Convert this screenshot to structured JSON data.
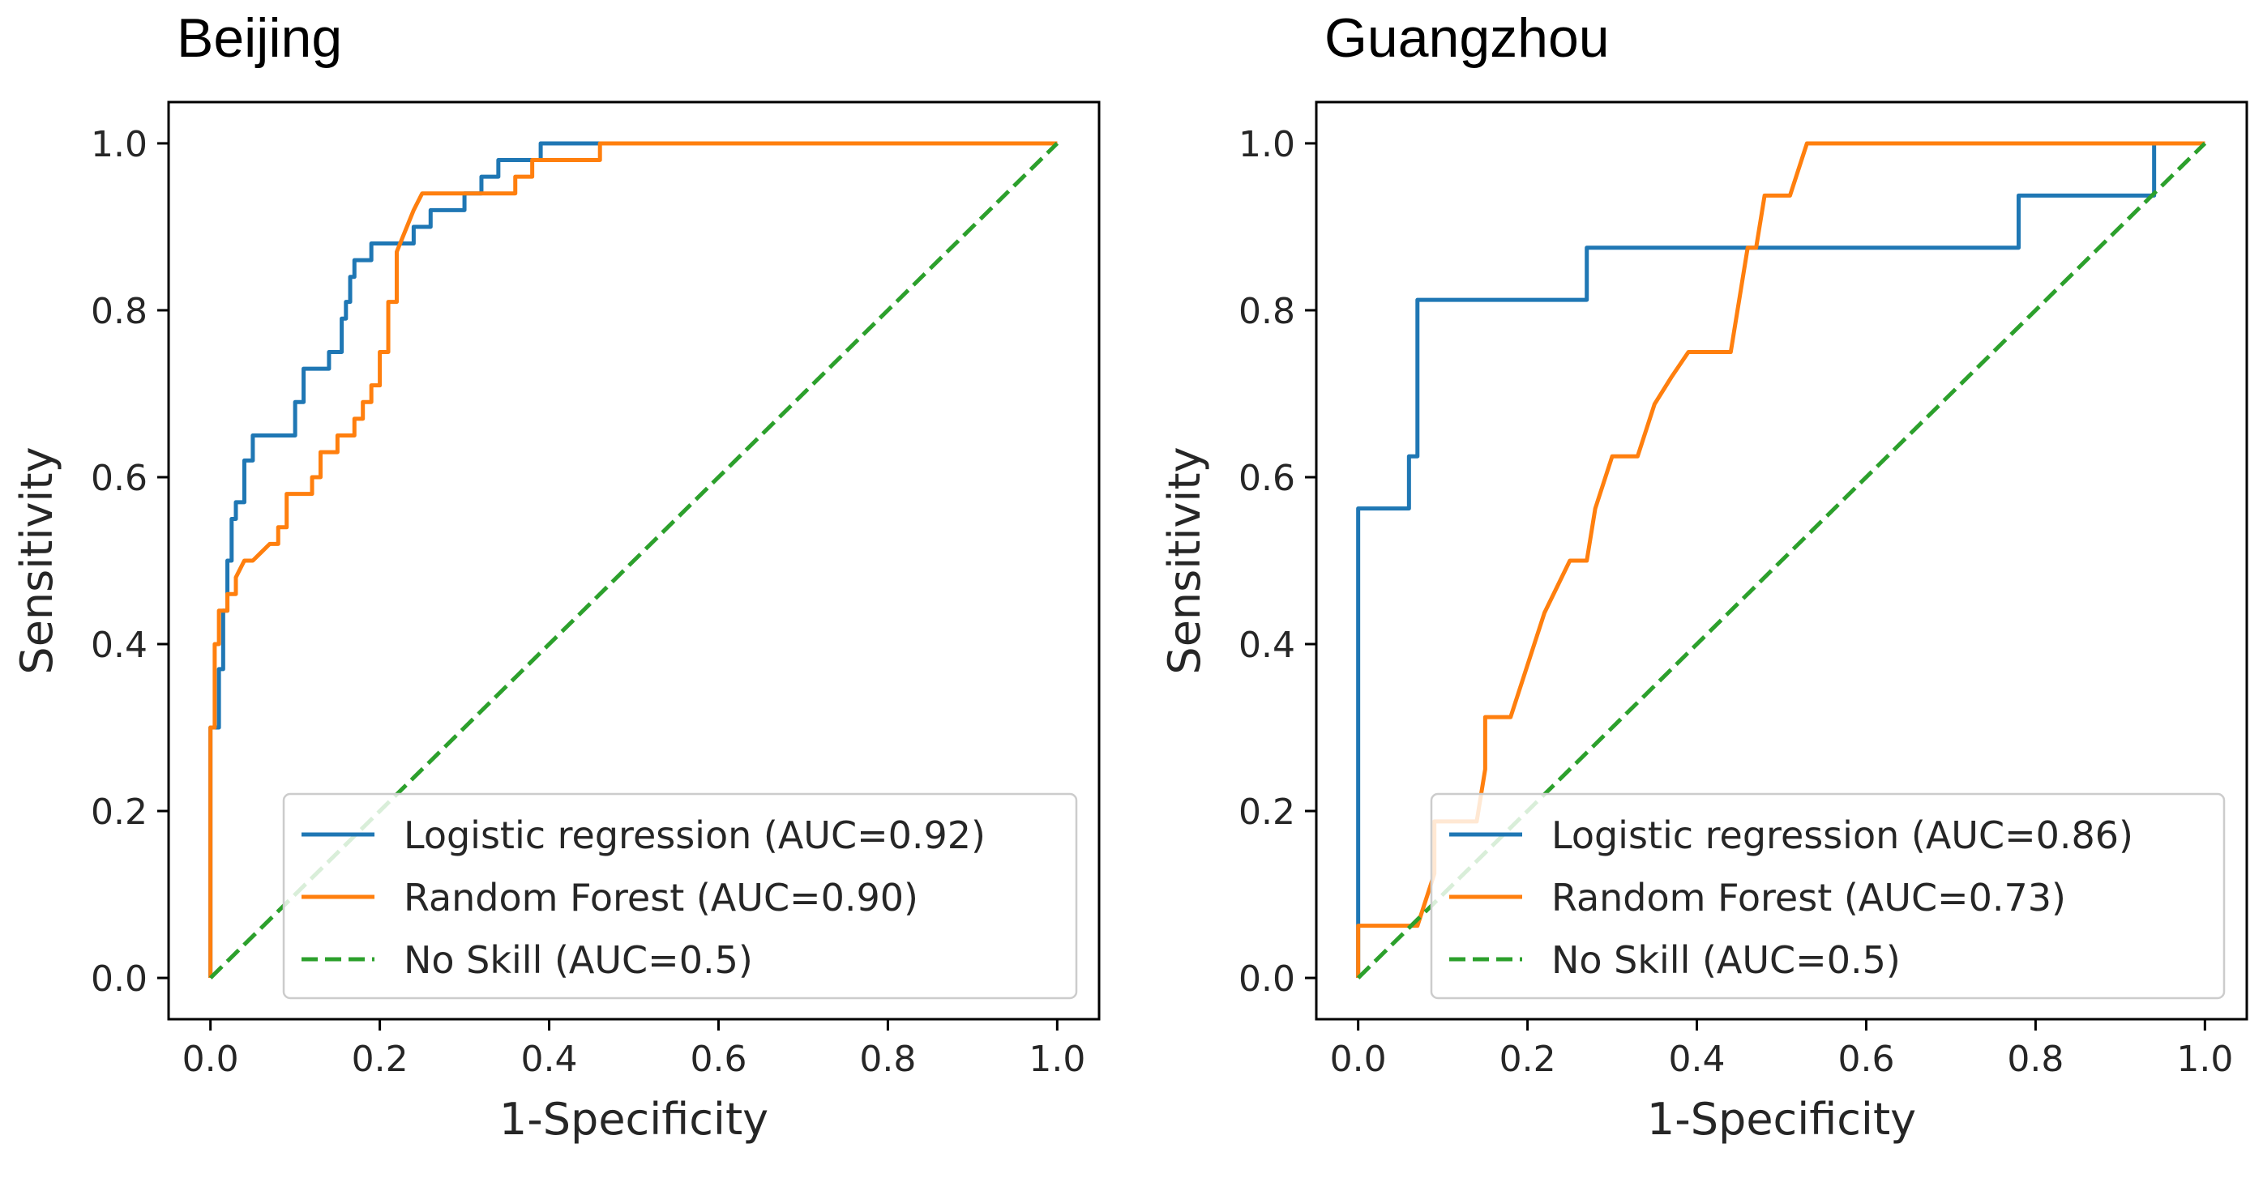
{
  "chart_data": [
    {
      "type": "line",
      "title": "Beijing",
      "xlabel": "1-Specificity",
      "ylabel": "Sensitivity",
      "xlim": [
        0,
        1
      ],
      "ylim": [
        0,
        1
      ],
      "xticks": [
        "0.0",
        "0.2",
        "0.4",
        "0.6",
        "0.8",
        "1.0"
      ],
      "yticks": [
        "0.0",
        "0.2",
        "0.4",
        "0.6",
        "0.8",
        "1.0"
      ],
      "legend_position": "bottom-right",
      "series": [
        {
          "name": "Logistic regression (AUC=0.92)",
          "color": "#1f77b4",
          "style": "solid",
          "x": [
            0,
            0,
            0.01,
            0.01,
            0.015,
            0.015,
            0.02,
            0.02,
            0.025,
            0.025,
            0.03,
            0.03,
            0.04,
            0.04,
            0.05,
            0.05,
            0.06,
            0.06,
            0.1,
            0.1,
            0.11,
            0.11,
            0.14,
            0.14,
            0.155,
            0.155,
            0.16,
            0.16,
            0.165,
            0.165,
            0.17,
            0.17,
            0.19,
            0.19,
            0.23,
            0.23,
            0.24,
            0.24,
            0.26,
            0.26,
            0.3,
            0.3,
            0.32,
            0.32,
            0.34,
            0.34,
            0.39,
            0.39,
            0.47,
            1
          ],
          "y": [
            0,
            0.3,
            0.3,
            0.37,
            0.37,
            0.44,
            0.44,
            0.5,
            0.5,
            0.55,
            0.55,
            0.57,
            0.57,
            0.62,
            0.62,
            0.65,
            0.65,
            0.65,
            0.65,
            0.69,
            0.69,
            0.73,
            0.73,
            0.75,
            0.75,
            0.79,
            0.79,
            0.81,
            0.81,
            0.84,
            0.84,
            0.86,
            0.86,
            0.88,
            0.88,
            0.88,
            0.88,
            0.9,
            0.9,
            0.92,
            0.92,
            0.94,
            0.94,
            0.96,
            0.96,
            0.98,
            0.98,
            1.0,
            1.0,
            1.0
          ]
        },
        {
          "name": "Random Forest (AUC=0.90)",
          "color": "#ff7f0e",
          "style": "solid",
          "x": [
            0,
            0,
            0.005,
            0.005,
            0.01,
            0.01,
            0.02,
            0.02,
            0.03,
            0.03,
            0.04,
            0.05,
            0.06,
            0.07,
            0.08,
            0.08,
            0.09,
            0.09,
            0.12,
            0.12,
            0.13,
            0.13,
            0.15,
            0.15,
            0.17,
            0.17,
            0.18,
            0.18,
            0.19,
            0.19,
            0.2,
            0.2,
            0.21,
            0.21,
            0.22,
            0.22,
            0.24,
            0.25,
            0.32,
            0.32,
            0.36,
            0.36,
            0.38,
            0.38,
            0.46,
            0.46,
            1
          ],
          "y": [
            0,
            0.3,
            0.3,
            0.4,
            0.4,
            0.44,
            0.44,
            0.46,
            0.46,
            0.48,
            0.5,
            0.5,
            0.51,
            0.52,
            0.52,
            0.54,
            0.54,
            0.58,
            0.58,
            0.6,
            0.6,
            0.63,
            0.63,
            0.65,
            0.65,
            0.67,
            0.67,
            0.69,
            0.69,
            0.71,
            0.71,
            0.75,
            0.75,
            0.81,
            0.81,
            0.87,
            0.92,
            0.94,
            0.94,
            0.94,
            0.94,
            0.96,
            0.96,
            0.98,
            0.98,
            1.0,
            1.0
          ]
        },
        {
          "name": "No Skill (AUC=0.5)",
          "color": "#2ca02c",
          "style": "dashed",
          "x": [
            0,
            1
          ],
          "y": [
            0,
            1
          ]
        }
      ]
    },
    {
      "type": "line",
      "title": "Guangzhou",
      "xlabel": "1-Specificity",
      "ylabel": "Sensitivity",
      "xlim": [
        0,
        1
      ],
      "ylim": [
        0,
        1
      ],
      "xticks": [
        "0.0",
        "0.2",
        "0.4",
        "0.6",
        "0.8",
        "1.0"
      ],
      "yticks": [
        "0.0",
        "0.2",
        "0.4",
        "0.6",
        "0.8",
        "1.0"
      ],
      "legend_position": "bottom-right",
      "series": [
        {
          "name": "Logistic regression (AUC=0.86)",
          "color": "#1f77b4",
          "style": "solid",
          "x": [
            0,
            0,
            0.06,
            0.06,
            0.07,
            0.07,
            0.27,
            0.27,
            0.78,
            0.78,
            0.94,
            0.94,
            1
          ],
          "y": [
            0,
            0.5625,
            0.5625,
            0.625,
            0.625,
            0.8125,
            0.8125,
            0.875,
            0.875,
            0.9375,
            0.9375,
            1.0,
            1.0
          ]
        },
        {
          "name": "Random Forest (AUC=0.73)",
          "color": "#ff7f0e",
          "style": "solid",
          "x": [
            0,
            0,
            0.07,
            0.09,
            0.09,
            0.14,
            0.15,
            0.15,
            0.18,
            0.2,
            0.22,
            0.25,
            0.27,
            0.28,
            0.3,
            0.33,
            0.35,
            0.37,
            0.39,
            0.42,
            0.44,
            0.45,
            0.46,
            0.47,
            0.48,
            0.49,
            0.49,
            0.51,
            0.53,
            1
          ],
          "y": [
            0,
            0.0625,
            0.0625,
            0.125,
            0.1875,
            0.1875,
            0.25,
            0.3125,
            0.3125,
            0.375,
            0.4375,
            0.5,
            0.5,
            0.5625,
            0.625,
            0.625,
            0.6875,
            0.72,
            0.75,
            0.75,
            0.75,
            0.8125,
            0.875,
            0.875,
            0.9375,
            0.9375,
            0.9375,
            0.9375,
            1.0,
            1.0
          ]
        },
        {
          "name": "No Skill (AUC=0.5)",
          "color": "#2ca02c",
          "style": "dashed",
          "x": [
            0,
            1
          ],
          "y": [
            0,
            1
          ]
        }
      ]
    }
  ]
}
